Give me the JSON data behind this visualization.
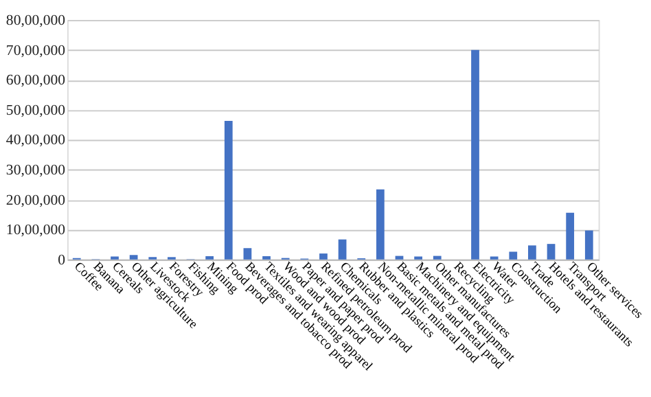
{
  "chart_data": {
    "type": "bar",
    "categories": [
      "Coffee",
      "Banana",
      "Cereals",
      "Other agriculture",
      "Livestock",
      "Forestry",
      "Fishing",
      "Mining",
      "Food prod",
      "Beverages and tobacco prod",
      "Textiles and wearing apparel",
      "Wood and wood prod",
      "Paper and paper prod",
      "Refined petroleum prod",
      "Chemicals",
      "Rubber and plastics",
      "Non-metallic mineral prod",
      "Basic metals and metal prod",
      "Machinery and equipment",
      "Other manufactures",
      "Recycling",
      "Electricity",
      "Water",
      "Construction",
      "Trade",
      "Hotels and restaurants",
      "Transport",
      "Other services"
    ],
    "values": [
      50000,
      10000,
      100000,
      150000,
      80000,
      80000,
      10000,
      110000,
      4630000,
      380000,
      110000,
      50000,
      30000,
      200000,
      670000,
      40000,
      2340000,
      120000,
      100000,
      120000,
      0,
      7000000,
      100000,
      260000,
      470000,
      520000,
      1560000,
      970000
    ],
    "color": "#4472c4",
    "ylim": [
      0,
      8000000
    ],
    "yticks": [
      0,
      {
        "value": 1000000,
        "label": "10,00,000"
      },
      {
        "value": 2000000,
        "label": "20,00,000"
      },
      {
        "value": 3000000,
        "label": "30,00,000"
      },
      {
        "value": 4000000,
        "label": "40,00,000"
      },
      {
        "value": 5000000,
        "label": "50,00,000"
      },
      {
        "value": 6000000,
        "label": "60,00,000"
      },
      {
        "value": 7000000,
        "label": "70,00,000"
      },
      {
        "value": 8000000,
        "label": "80,00,000"
      }
    ],
    "grid": "y"
  }
}
